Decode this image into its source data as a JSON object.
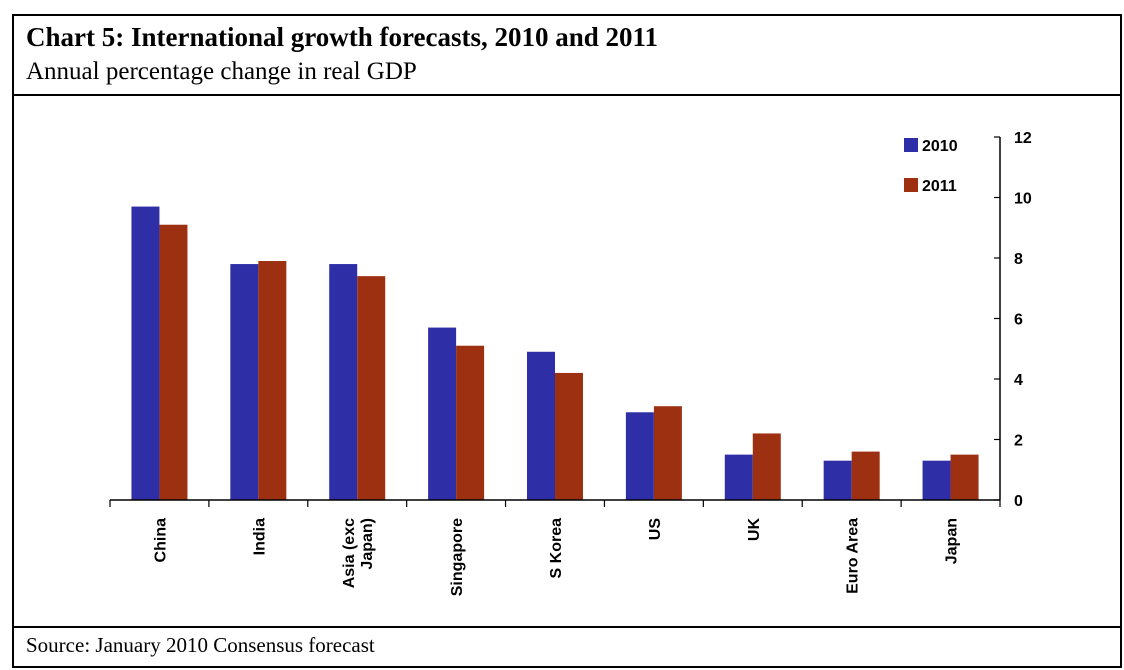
{
  "title": "Chart 5: International growth forecasts, 2010 and 2011",
  "subtitle": "Annual percentage change in real GDP",
  "source": "Source: January 2010 Consensus forecast",
  "colors": {
    "2010": "#2e2ea6",
    "2011": "#9c3010"
  },
  "chart_data": {
    "type": "bar",
    "categories": [
      "China",
      "India",
      "Asia (exc Japan)",
      "Singapore",
      "S Korea",
      "US",
      "UK",
      "Euro Area",
      "Japan"
    ],
    "category_lines": [
      [
        "China"
      ],
      [
        "India"
      ],
      [
        "Asia (exc",
        "Japan)"
      ],
      [
        "Singapore"
      ],
      [
        "S Korea"
      ],
      [
        "US"
      ],
      [
        "UK"
      ],
      [
        "Euro Area"
      ],
      [
        "Japan"
      ]
    ],
    "series": [
      {
        "name": "2010",
        "values": [
          9.7,
          7.8,
          7.8,
          5.7,
          4.9,
          2.9,
          1.5,
          1.3,
          1.3
        ]
      },
      {
        "name": "2011",
        "values": [
          9.1,
          7.9,
          7.4,
          5.1,
          4.2,
          3.1,
          2.2,
          1.6,
          1.5
        ]
      }
    ],
    "ylim": [
      0,
      12
    ],
    "yticks": [
      "0",
      "2",
      "4",
      "6",
      "8",
      "10",
      "12"
    ],
    "y_axis_side": "right",
    "legend": "top-right",
    "grid": false
  }
}
